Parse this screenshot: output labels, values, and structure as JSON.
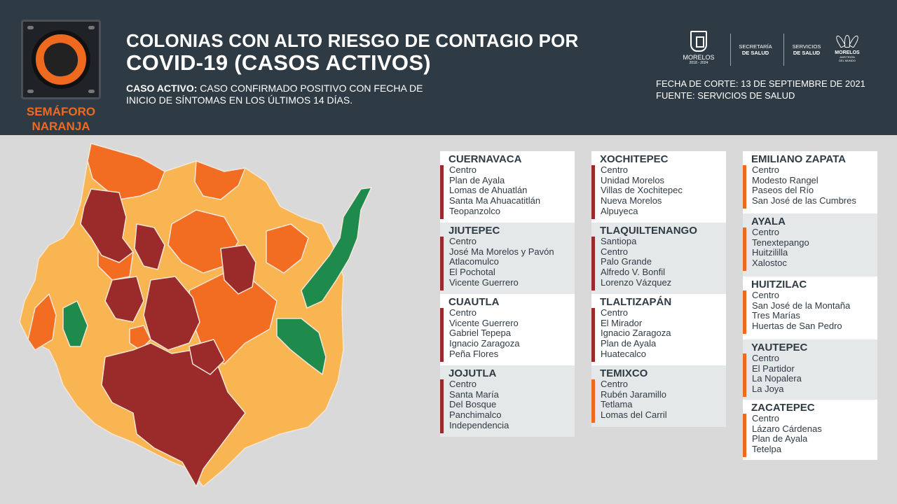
{
  "header": {
    "semaforo_label_1": "SEMÁFORO",
    "semaforo_label_2": "NARANJA",
    "title_line1": "COLONIAS CON ALTO RIESGO DE CONTAGIO POR",
    "title_line2": "COVID-19 (CASOS ACTIVOS)",
    "definition_bold": "CASO ACTIVO:",
    "definition_line1": " CASO CONFIRMADO POSITIVO CON FECHA DE",
    "definition_line2": "INICIO DE SÍNTOMAS EN LOS ÚLTIMOS 14 DÍAS.",
    "fecha": "FECHA DE CORTE: 13 DE SEPTIEMBRE DE 2021",
    "fuente": "FUENTE: SERVICIOS DE SALUD",
    "logos": {
      "morelos": "MORELOS",
      "morelos_years": "2018 - 2024",
      "secretaria_1": "SECRETARÍA",
      "secretaria_2": "DE SALUD",
      "servicios_1": "SERVICIOS",
      "servicios_2": "DE SALUD",
      "lotus": "MORELOS",
      "lotus_sub_1": "ANFITRIÓN",
      "lotus_sub_2": "DEL MUNDO"
    }
  },
  "colors": {
    "header_bg": "#2f3b44",
    "semaforo_orange": "#ef6a1f",
    "map_dark_red": "#9b2a2a",
    "map_orange": "#f26c22",
    "map_light_orange": "#f9b552",
    "map_green": "#1e8a4c"
  },
  "municipios": [
    {
      "name": "CUERNAVACA",
      "level": "red",
      "colonias": [
        "Centro",
        "Plan de Ayala",
        "Lomas de Ahuatlán",
        "Santa Ma Ahuacatitlán",
        "Teopanzolco"
      ]
    },
    {
      "name": "JIUTEPEC",
      "level": "red",
      "colonias": [
        "Centro",
        "José Ma Morelos y Pavón",
        "Atlacomulco",
        "El Pochotal",
        "Vicente Guerrero"
      ]
    },
    {
      "name": "CUAUTLA",
      "level": "red",
      "colonias": [
        "Centro",
        "Vicente Guerrero",
        "Gabriel Tepepa",
        "Ignacio Zaragoza",
        "Peña Flores"
      ]
    },
    {
      "name": "JOJUTLA",
      "level": "red",
      "colonias": [
        "Centro",
        "Santa María",
        "Del Bosque",
        "Panchimalco",
        "Independencia"
      ]
    },
    {
      "name": "XOCHITEPEC",
      "level": "red",
      "colonias": [
        "Centro",
        "Unidad Morelos",
        "Villas de Xochitepec",
        "Nueva Morelos",
        "Alpuyeca"
      ]
    },
    {
      "name": "TLAQUILTENANGO",
      "level": "red",
      "colonias": [
        "Santiopa",
        "Centro",
        "Palo Grande",
        "Alfredo V. Bonfil",
        "Lorenzo Vázquez"
      ]
    },
    {
      "name": "TLALTIZAPÁN",
      "level": "red",
      "colonias": [
        "Centro",
        "El Mirador",
        "Ignacio Zaragoza",
        "Plan de Ayala",
        "Huatecalco"
      ]
    },
    {
      "name": "TEMIXCO",
      "level": "orange",
      "colonias": [
        "Centro",
        "Rubén Jaramillo",
        "Tetlama",
        "Lomas del Carril"
      ]
    },
    {
      "name": "EMILIANO ZAPATA",
      "level": "orange",
      "colonias": [
        "Centro",
        "Modesto Rangel",
        "Paseos del Río",
        "San José de las Cumbres"
      ]
    },
    {
      "name": "AYALA",
      "level": "orange",
      "colonias": [
        "Centro",
        "Tenextepango",
        "Huitzililla",
        "Xalostoc"
      ]
    },
    {
      "name": "HUITZILAC",
      "level": "orange",
      "colonias": [
        "Centro",
        "San José de la Montaña",
        "Tres Marías",
        "Huertas de San Pedro"
      ]
    },
    {
      "name": "YAUTEPEC",
      "level": "orange",
      "colonias": [
        "Centro",
        "El Partidor",
        "La Nopalera",
        "La Joya"
      ]
    },
    {
      "name": "ZACATEPEC",
      "level": "orange",
      "colonias": [
        "Centro",
        "Lázaro Cárdenas",
        "Plan de Ayala",
        "Tetelpa"
      ]
    }
  ]
}
